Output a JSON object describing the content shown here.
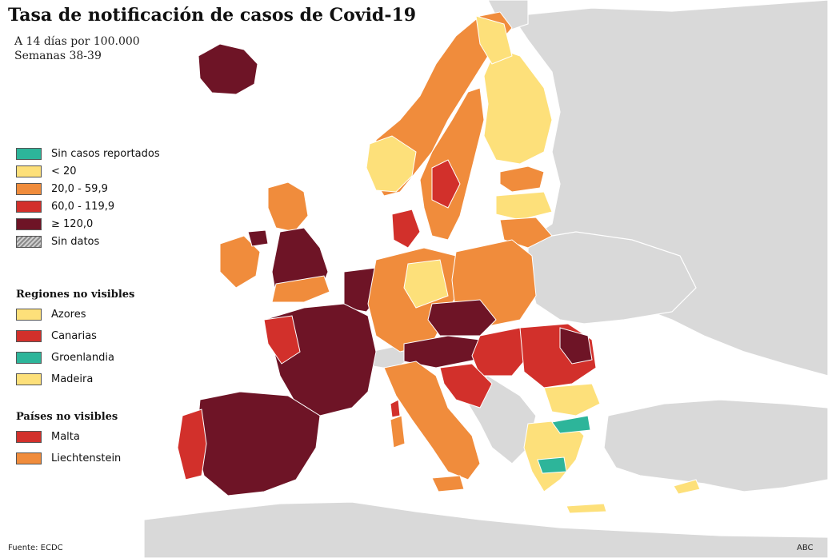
{
  "title": "Tasa de notificación de casos de Covid-19",
  "subtitle_1": "A 14 días por 100.000",
  "subtitle_2": "Semanas 38-39",
  "colors": {
    "sea": "#ffffff",
    "non_eu_land": "#d9d9d9",
    "no_cases": "#2db59a",
    "lt_20": "#fde07a",
    "20_59": "#f08c3c",
    "60_119": "#d2302b",
    "gte_120": "#6e1426"
  },
  "legend": [
    {
      "label": "Sin casos reportados",
      "color": "#2db59a",
      "hatch": false
    },
    {
      "label": "< 20",
      "color": "#fde07a",
      "hatch": false
    },
    {
      "label": "20,0 - 59,9",
      "color": "#f08c3c",
      "hatch": false
    },
    {
      "label": "60,0 - 119,9",
      "color": "#d2302b",
      "hatch": false
    },
    {
      "label": "≥ 120,0",
      "color": "#6e1426",
      "hatch": false
    },
    {
      "label": "Sin datos",
      "color": "#aaaaaa",
      "hatch": true
    }
  ],
  "regions_heading": "Regiones no visibles",
  "regions": [
    {
      "label": "Azores",
      "color": "#fde07a"
    },
    {
      "label": "Canarias",
      "color": "#d2302b"
    },
    {
      "label": "Groenlandia",
      "color": "#2db59a"
    },
    {
      "label": "Madeira",
      "color": "#fde07a"
    }
  ],
  "countries_heading": "Países no visibles",
  "countries": [
    {
      "label": "Malta",
      "color": "#d2302b"
    },
    {
      "label": "Liechtenstein",
      "color": "#f08c3c"
    }
  ],
  "source": "Fuente: ECDC",
  "brand": "ABC"
}
